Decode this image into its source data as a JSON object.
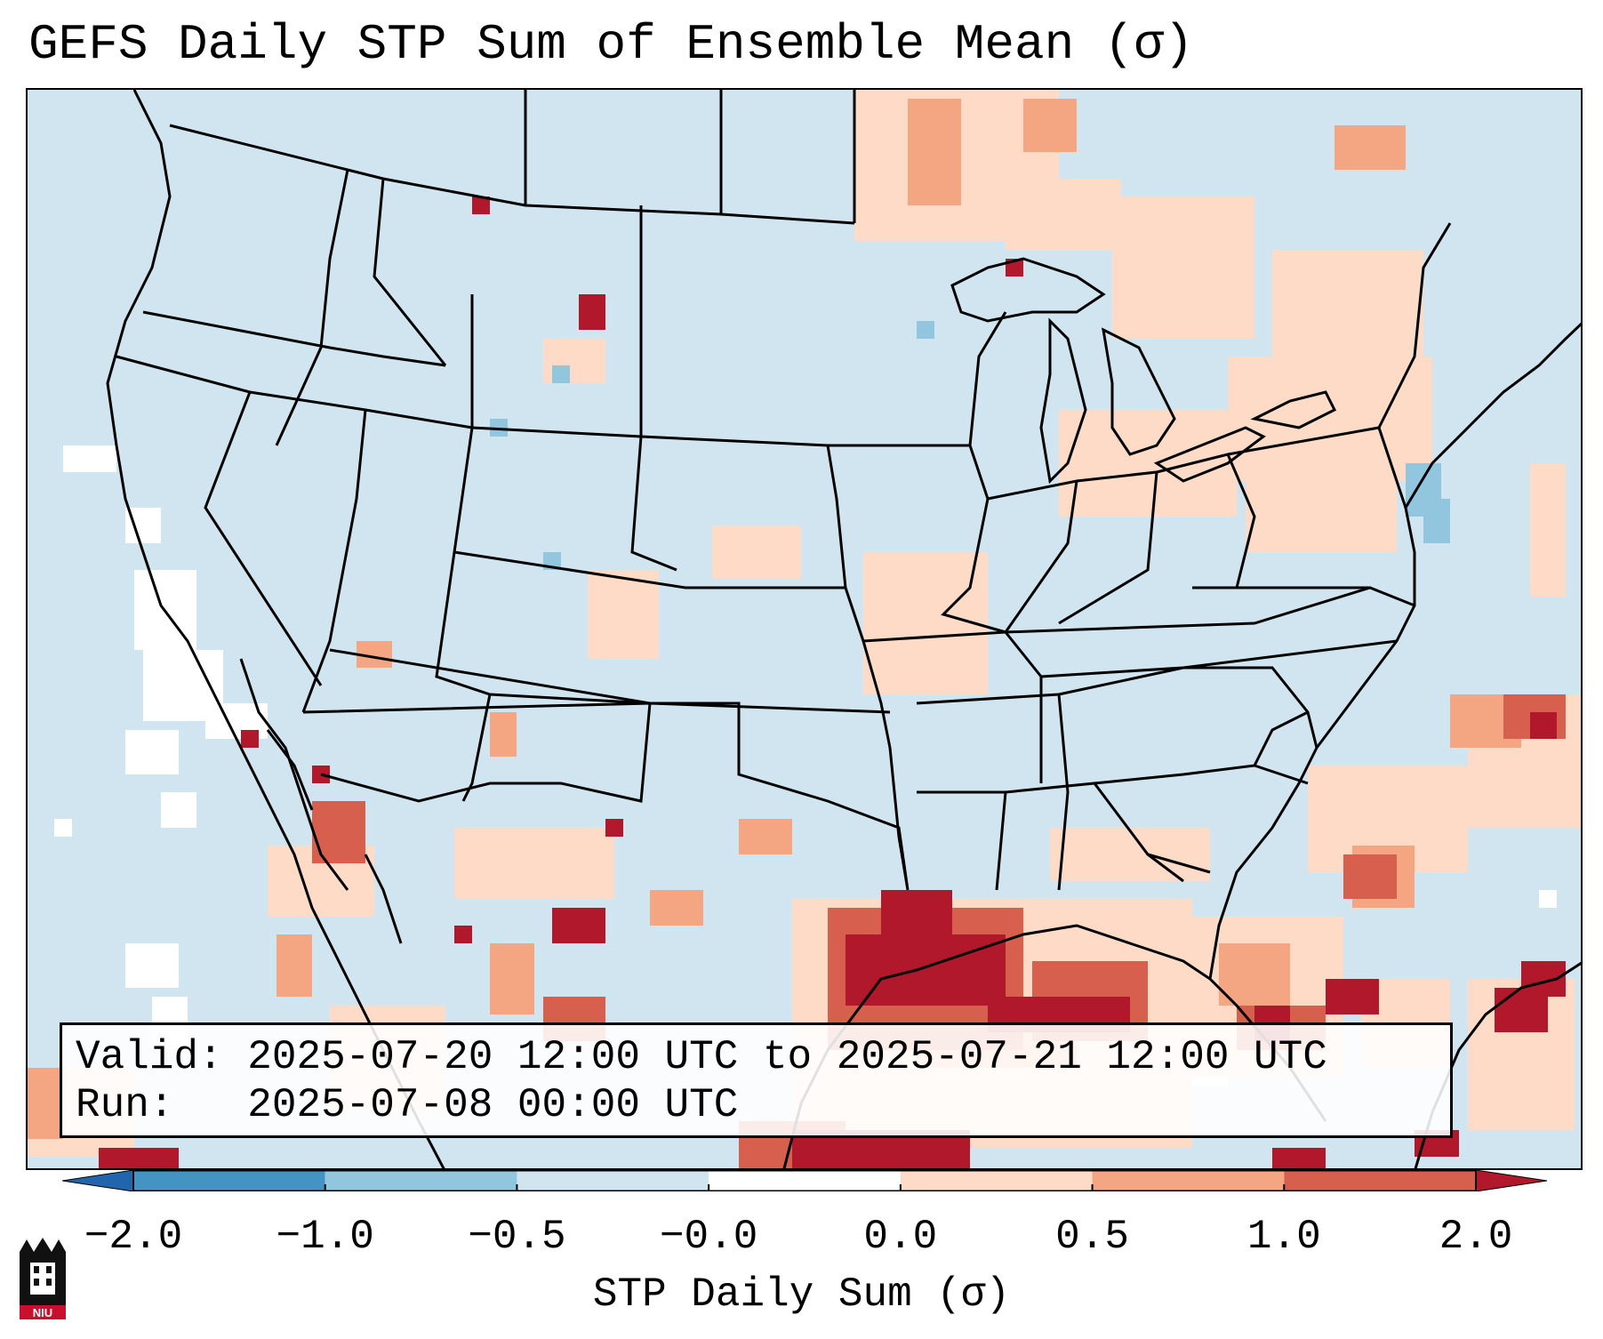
{
  "title": "GEFS Daily STP Sum of Ensemble Mean (σ)",
  "info": {
    "valid_label": "Valid:",
    "valid_value": "2025-07-20 12:00 UTC to 2025-07-21 12:00 UTC",
    "run_label": "Run:",
    "run_value": "2025-07-08 00:00 UTC"
  },
  "colorbar": {
    "label": "STP Daily Sum (σ)",
    "ticks": [
      "−2.0",
      "−1.0",
      "−0.5",
      "−0.0",
      "0.0",
      "0.5",
      "1.0",
      "2.0"
    ],
    "colors": [
      "#4393c3",
      "#92c5de",
      "#d1e5f0",
      "#ffffff",
      "#fddbc7",
      "#f4a582",
      "#d6604d"
    ],
    "extend_low_color": "#2166ac",
    "extend_high_color": "#b2182b"
  },
  "map": {
    "background_color": "#d1e5f0",
    "region": "Contiguous United States"
  },
  "logo": {
    "text": "NIU"
  }
}
